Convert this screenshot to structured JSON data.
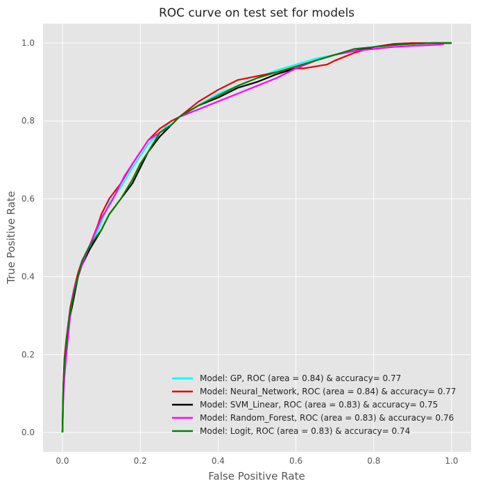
{
  "chart_data": {
    "type": "line",
    "title": "ROC curve on test set for models",
    "xlabel": "False Positive Rate",
    "ylabel": "True Positive Rate",
    "xlim": [
      -0.05,
      1.05
    ],
    "ylim": [
      -0.05,
      1.05
    ],
    "xticks": [
      "0.0",
      "0.2",
      "0.4",
      "0.6",
      "0.8",
      "1.0"
    ],
    "yticks": [
      "0.0",
      "0.2",
      "0.4",
      "0.6",
      "0.8",
      "1.0"
    ],
    "grid": true,
    "legend_position": "bottom-right",
    "background": "#e5e5e5",
    "series": [
      {
        "name": "Model: GP, ROC (area = 0.84) & accuracy= 0.77",
        "color": "#00ffff",
        "x": [
          0,
          0.002,
          0.005,
          0.01,
          0.015,
          0.02,
          0.03,
          0.04,
          0.05,
          0.07,
          0.1,
          0.12,
          0.15,
          0.18,
          0.2,
          0.22,
          0.25,
          0.28,
          0.3,
          0.35,
          0.4,
          0.45,
          0.5,
          0.55,
          0.6,
          0.65,
          0.7,
          0.75,
          0.8,
          0.85,
          0.9,
          0.95,
          0.98,
          1.0
        ],
        "y": [
          0,
          0.1,
          0.18,
          0.24,
          0.28,
          0.32,
          0.37,
          0.4,
          0.43,
          0.47,
          0.54,
          0.59,
          0.63,
          0.68,
          0.71,
          0.74,
          0.77,
          0.8,
          0.81,
          0.84,
          0.87,
          0.89,
          0.91,
          0.93,
          0.945,
          0.96,
          0.97,
          0.98,
          0.99,
          0.995,
          0.998,
          1.0,
          1.0,
          1.0
        ]
      },
      {
        "name": "Model: Neural_Network, ROC (area = 0.84) & accuracy= 0.77",
        "color": "#e60000",
        "x": [
          0,
          0.002,
          0.005,
          0.01,
          0.015,
          0.02,
          0.03,
          0.04,
          0.05,
          0.07,
          0.09,
          0.1,
          0.12,
          0.15,
          0.18,
          0.2,
          0.22,
          0.25,
          0.28,
          0.3,
          0.35,
          0.4,
          0.45,
          0.5,
          0.55,
          0.6,
          0.62,
          0.65,
          0.68,
          0.7,
          0.75,
          0.8,
          0.85,
          0.9,
          0.95,
          0.98,
          1.0
        ],
        "y": [
          0,
          0.12,
          0.19,
          0.24,
          0.28,
          0.32,
          0.37,
          0.41,
          0.44,
          0.48,
          0.53,
          0.56,
          0.6,
          0.64,
          0.69,
          0.72,
          0.75,
          0.78,
          0.8,
          0.81,
          0.85,
          0.88,
          0.905,
          0.915,
          0.925,
          0.935,
          0.935,
          0.94,
          0.945,
          0.955,
          0.975,
          0.99,
          0.998,
          1.0,
          1.0,
          1.0,
          1.0
        ]
      },
      {
        "name": "Model: SVM_Linear, ROC (area = 0.83) & accuracy= 0.75",
        "color": "#000000",
        "x": [
          0,
          0.002,
          0.005,
          0.01,
          0.015,
          0.02,
          0.03,
          0.04,
          0.05,
          0.07,
          0.1,
          0.12,
          0.15,
          0.18,
          0.2,
          0.22,
          0.25,
          0.28,
          0.3,
          0.35,
          0.4,
          0.45,
          0.5,
          0.55,
          0.6,
          0.65,
          0.7,
          0.75,
          0.8,
          0.85,
          0.9,
          0.95,
          0.98,
          1.0
        ],
        "y": [
          0,
          0.1,
          0.16,
          0.22,
          0.27,
          0.3,
          0.35,
          0.4,
          0.43,
          0.47,
          0.52,
          0.56,
          0.6,
          0.64,
          0.68,
          0.72,
          0.76,
          0.79,
          0.81,
          0.84,
          0.86,
          0.885,
          0.9,
          0.92,
          0.935,
          0.955,
          0.97,
          0.98,
          0.99,
          0.995,
          0.998,
          1.0,
          1.0,
          1.0
        ]
      },
      {
        "name": "Model: Random_Forest, ROC (area = 0.83) & accuracy= 0.76",
        "color": "#ff00ff",
        "x": [
          0,
          0.002,
          0.005,
          0.01,
          0.015,
          0.02,
          0.025,
          0.03,
          0.04,
          0.05,
          0.07,
          0.1,
          0.13,
          0.16,
          0.2,
          0.22,
          0.25,
          0.28,
          0.3,
          0.35,
          0.4,
          0.45,
          0.5,
          0.55,
          0.6,
          0.65,
          0.7,
          0.75,
          0.8,
          0.85,
          0.9,
          0.95,
          0.98
        ],
        "y": [
          0,
          0.08,
          0.14,
          0.2,
          0.25,
          0.3,
          0.34,
          0.37,
          0.4,
          0.43,
          0.48,
          0.55,
          0.6,
          0.66,
          0.72,
          0.75,
          0.77,
          0.79,
          0.81,
          0.83,
          0.85,
          0.87,
          0.89,
          0.91,
          0.935,
          0.955,
          0.97,
          0.98,
          0.985,
          0.99,
          0.993,
          0.995,
          0.997
        ]
      },
      {
        "name": "Model: Logit, ROC (area = 0.83) & accuracy= 0.74",
        "color": "#008000",
        "x": [
          0,
          0.002,
          0.005,
          0.01,
          0.015,
          0.02,
          0.03,
          0.04,
          0.05,
          0.07,
          0.1,
          0.12,
          0.15,
          0.18,
          0.2,
          0.22,
          0.25,
          0.28,
          0.3,
          0.35,
          0.4,
          0.45,
          0.5,
          0.55,
          0.6,
          0.65,
          0.7,
          0.75,
          0.8,
          0.85,
          0.9,
          0.95,
          0.98,
          1.0
        ],
        "y": [
          0,
          0.12,
          0.18,
          0.23,
          0.28,
          0.31,
          0.36,
          0.4,
          0.44,
          0.48,
          0.52,
          0.56,
          0.6,
          0.65,
          0.69,
          0.72,
          0.77,
          0.79,
          0.81,
          0.84,
          0.865,
          0.89,
          0.91,
          0.925,
          0.94,
          0.955,
          0.97,
          0.985,
          0.99,
          0.995,
          0.998,
          1.0,
          1.0,
          1.0
        ]
      }
    ]
  }
}
